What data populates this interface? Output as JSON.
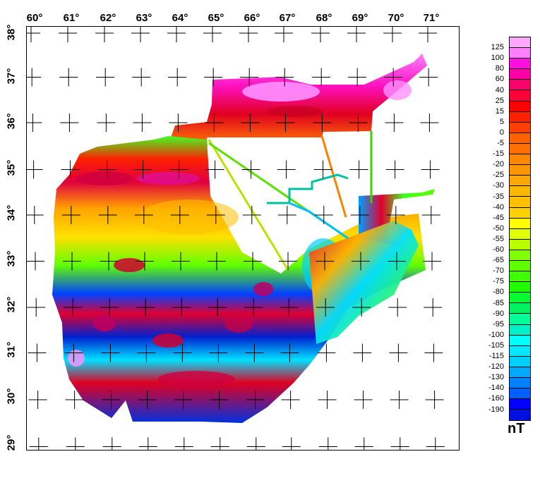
{
  "map": {
    "title": "",
    "lon_labels": [
      "60°",
      "61°",
      "62°",
      "63°",
      "64°",
      "65°",
      "66°",
      "67°",
      "68°",
      "69°",
      "70°",
      "71°"
    ],
    "lat_labels": [
      "38°",
      "37°",
      "36°",
      "35°",
      "34°",
      "33°",
      "32°",
      "31°",
      "30°",
      "29°"
    ],
    "lon_range": [
      59.85,
      71.8
    ],
    "lat_range": [
      28.9,
      38.05
    ],
    "graticule": "crosses at 1° intervals",
    "description": "Magnetic anomaly (total field) map with shaded-relief color fill; irregular survey polygon with flight-line traverses"
  },
  "colorbar": {
    "unit": "nT",
    "labels": [
      "125",
      "100",
      "80",
      "60",
      "40",
      "25",
      "15",
      "5",
      "0",
      "-5",
      "-15",
      "-20",
      "-25",
      "-30",
      "-35",
      "-40",
      "-45",
      "-50",
      "-55",
      "-60",
      "-65",
      "-70",
      "-75",
      "-80",
      "-85",
      "-90",
      "-95",
      "-100",
      "-105",
      "-115",
      "-120",
      "-130",
      "-140",
      "-160",
      "-190"
    ],
    "colors": [
      "#ffa8ff",
      "#ff80ff",
      "#ff10e0",
      "#ff00a8",
      "#ff0070",
      "#ff0038",
      "#ff0000",
      "#ff2000",
      "#ff4000",
      "#ff6000",
      "#ff7000",
      "#ff8800",
      "#ff9800",
      "#ffa800",
      "#ffb800",
      "#ffc000",
      "#ffd000",
      "#ffff00",
      "#e0ff00",
      "#b8ff00",
      "#80ff00",
      "#60ff00",
      "#40ff00",
      "#20ff00",
      "#00ff30",
      "#00f060",
      "#00ff98",
      "#00f0c8",
      "#00ffff",
      "#00e8ff",
      "#00d0ff",
      "#00a8ff",
      "#0080ff",
      "#0060ff",
      "#0000ff",
      "#0010e0"
    ]
  }
}
